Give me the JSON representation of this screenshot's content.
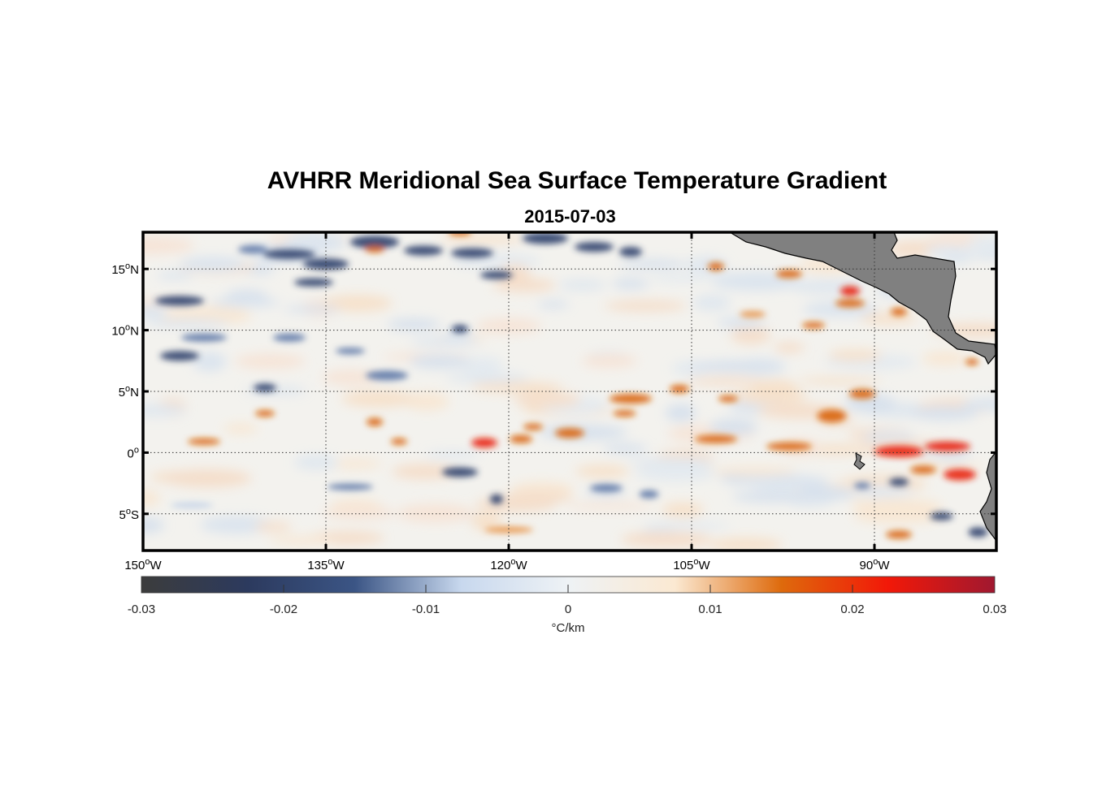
{
  "figure": {
    "title": "AVHRR Meridional Sea Surface Temperature Gradient",
    "date": "2015-07-03"
  },
  "map": {
    "lon_range": [
      -150,
      -80
    ],
    "lat_range": [
      -8,
      18
    ],
    "lat_ticks": [
      {
        "value": 15,
        "num": "15",
        "hemi": "N"
      },
      {
        "value": 10,
        "num": "10",
        "hemi": "N"
      },
      {
        "value": 5,
        "num": "5",
        "hemi": "N"
      },
      {
        "value": 0,
        "num": "0",
        "hemi": ""
      },
      {
        "value": -5,
        "num": "5",
        "hemi": "S"
      }
    ],
    "lon_ticks": [
      {
        "value": -150,
        "num": "150",
        "hemi": "W"
      },
      {
        "value": -135,
        "num": "135",
        "hemi": "W"
      },
      {
        "value": -120,
        "num": "120",
        "hemi": "W"
      },
      {
        "value": -105,
        "num": "105",
        "hemi": "W"
      },
      {
        "value": -90,
        "num": "90",
        "hemi": "W"
      }
    ],
    "grid": "dotted",
    "land_color": "#808080"
  },
  "colorbar": {
    "range": [
      -0.03,
      0.03
    ],
    "tick_labels": [
      "-0.03",
      "-0.02",
      "-0.01",
      "0",
      "0.01",
      "0.02",
      "0.03"
    ],
    "unit": "°C/km",
    "colormap": [
      "#3c3c3c",
      "#2c3a5e",
      "#3b5585",
      "#c8d8ee",
      "#eef2f5",
      "#fbe9d2",
      "#de6a0c",
      "#f21808",
      "#a01830"
    ]
  }
}
